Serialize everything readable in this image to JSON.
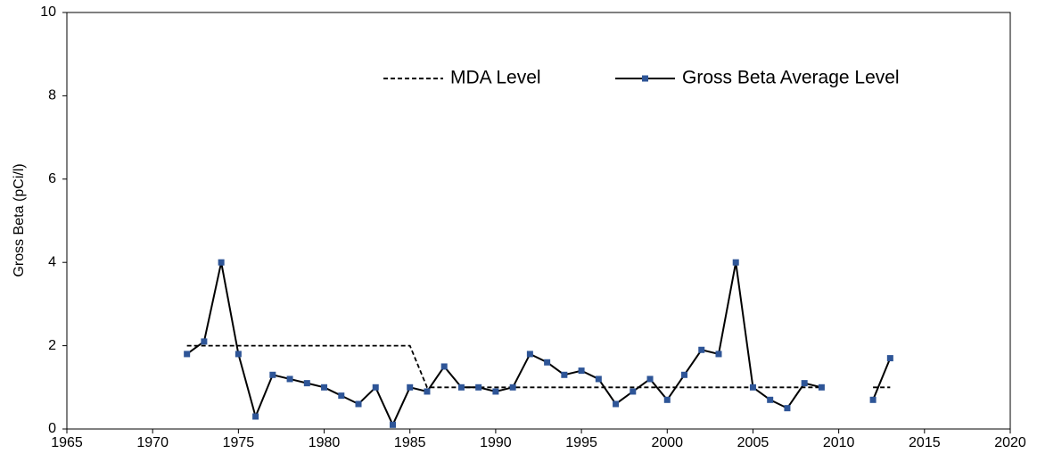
{
  "chart_data": {
    "type": "line",
    "ylabel": "Gross Beta (pCi/l)",
    "x": [
      1972,
      1973,
      1974,
      1975,
      1976,
      1977,
      1978,
      1979,
      1980,
      1981,
      1982,
      1983,
      1984,
      1985,
      1986,
      1987,
      1988,
      1989,
      1990,
      1991,
      1992,
      1993,
      1994,
      1995,
      1996,
      1997,
      1998,
      1999,
      2000,
      2001,
      2002,
      2003,
      2004,
      2005,
      2006,
      2007,
      2008,
      2009,
      2010,
      2011,
      2012,
      2013
    ],
    "series": [
      {
        "name": "MDA Level",
        "color": "#000000",
        "dashed": true,
        "markers": false,
        "values": [
          2,
          2,
          2,
          2,
          2,
          2,
          2,
          2,
          2,
          2,
          2,
          2,
          2,
          2,
          1,
          1,
          1,
          1,
          1,
          1,
          1,
          1,
          1,
          1,
          1,
          1,
          1,
          1,
          1,
          1,
          1,
          1,
          1,
          1,
          1,
          1,
          1,
          1,
          null,
          null,
          1,
          1
        ]
      },
      {
        "name": "Gross Beta Average Level",
        "color": "#000000",
        "marker_color": "#2e5597",
        "dashed": false,
        "markers": true,
        "values": [
          1.8,
          2.1,
          4.0,
          1.8,
          0.3,
          1.3,
          1.2,
          1.1,
          1.0,
          0.8,
          0.6,
          1.0,
          0.1,
          1.0,
          0.9,
          1.5,
          1.0,
          1.0,
          0.9,
          1.0,
          1.8,
          1.6,
          1.3,
          1.4,
          1.2,
          0.6,
          0.9,
          1.2,
          0.7,
          1.3,
          1.9,
          1.8,
          4.0,
          1.0,
          0.7,
          0.5,
          1.1,
          1.0,
          null,
          null,
          0.7,
          1.7
        ]
      }
    ],
    "xlim": [
      1965,
      2020
    ],
    "xticks": [
      1965,
      1970,
      1975,
      1980,
      1985,
      1990,
      1995,
      2000,
      2005,
      2010,
      2015,
      2020
    ],
    "ylim": [
      0,
      10
    ],
    "yticks": [
      0,
      2,
      4,
      6,
      8,
      10
    ],
    "grid": false,
    "legend": "top"
  }
}
